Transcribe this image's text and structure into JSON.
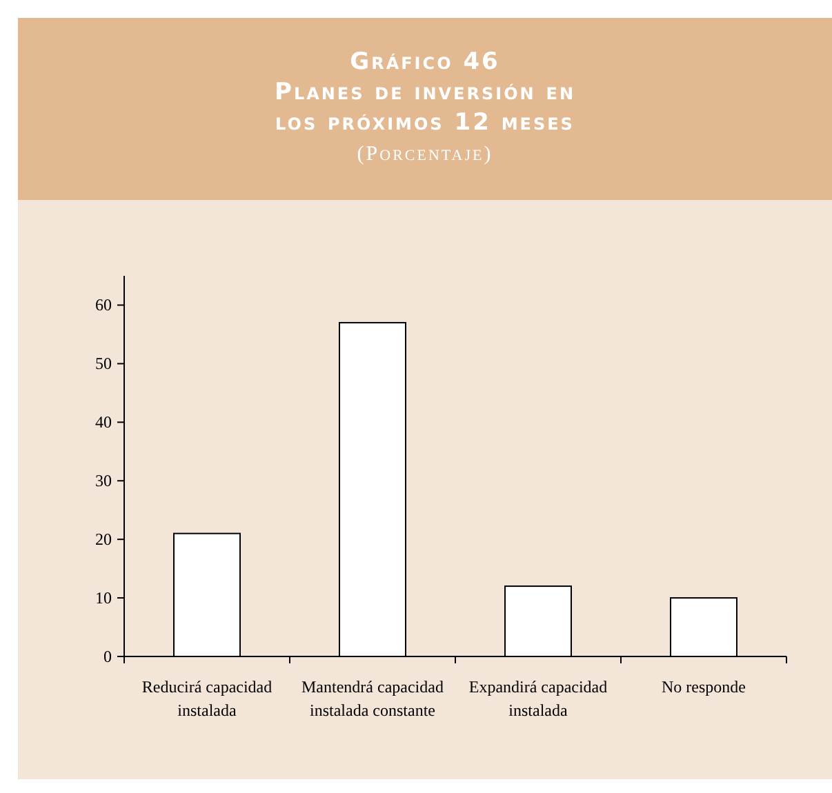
{
  "chart_data": {
    "type": "bar",
    "title": "Gráfico 46\nPlanes de inversión en\nlos próximos 12 meses",
    "subtitle": "(Porcentaje)",
    "categories": [
      "Reducirá capacidad instalada",
      "Mantendrá capacidad instalada constante",
      "Expandirá capacidad instalada",
      "No responde"
    ],
    "values": [
      21,
      57,
      12,
      10
    ],
    "color": "#ffffff",
    "ylim": [
      0,
      65
    ],
    "yticks": [
      0,
      10,
      20,
      30,
      40,
      50,
      60
    ],
    "grid": false
  }
}
